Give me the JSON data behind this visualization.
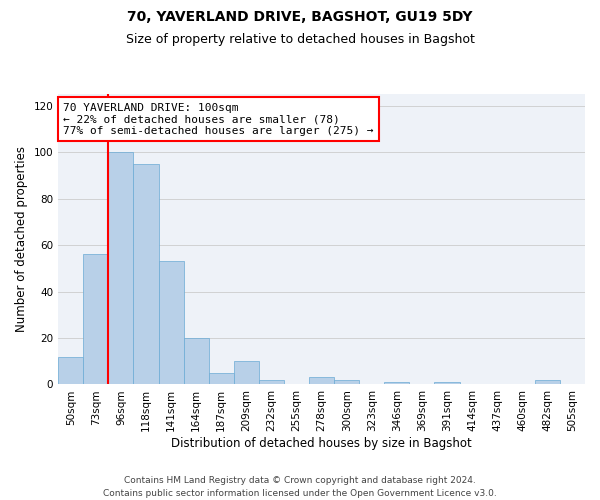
{
  "title_line1": "70, YAVERLAND DRIVE, BAGSHOT, GU19 5DY",
  "title_line2": "Size of property relative to detached houses in Bagshot",
  "xlabel": "Distribution of detached houses by size in Bagshot",
  "ylabel": "Number of detached properties",
  "bar_values": [
    12,
    56,
    100,
    95,
    53,
    20,
    5,
    10,
    2,
    0,
    3,
    2,
    0,
    1,
    0,
    1,
    0,
    0,
    0,
    2,
    0
  ],
  "bin_labels": [
    "50sqm",
    "73sqm",
    "96sqm",
    "118sqm",
    "141sqm",
    "164sqm",
    "187sqm",
    "209sqm",
    "232sqm",
    "255sqm",
    "278sqm",
    "300sqm",
    "323sqm",
    "346sqm",
    "369sqm",
    "391sqm",
    "414sqm",
    "437sqm",
    "460sqm",
    "482sqm",
    "505sqm"
  ],
  "bar_color": "#b8d0e8",
  "bar_edge_color": "#6aaad4",
  "annotation_text": "70 YAVERLAND DRIVE: 100sqm\n← 22% of detached houses are smaller (78)\n77% of semi-detached houses are larger (275) →",
  "annotation_box_color": "white",
  "annotation_box_edge_color": "red",
  "vline_color": "red",
  "vline_x_index": 2,
  "ylim": [
    0,
    125
  ],
  "yticks": [
    0,
    20,
    40,
    60,
    80,
    100,
    120
  ],
  "grid_color": "#cccccc",
  "background_color": "#eef2f8",
  "footer_text": "Contains HM Land Registry data © Crown copyright and database right 2024.\nContains public sector information licensed under the Open Government Licence v3.0.",
  "title_fontsize": 10,
  "subtitle_fontsize": 9,
  "axis_label_fontsize": 8.5,
  "tick_fontsize": 7.5,
  "annotation_fontsize": 8,
  "footer_fontsize": 6.5
}
